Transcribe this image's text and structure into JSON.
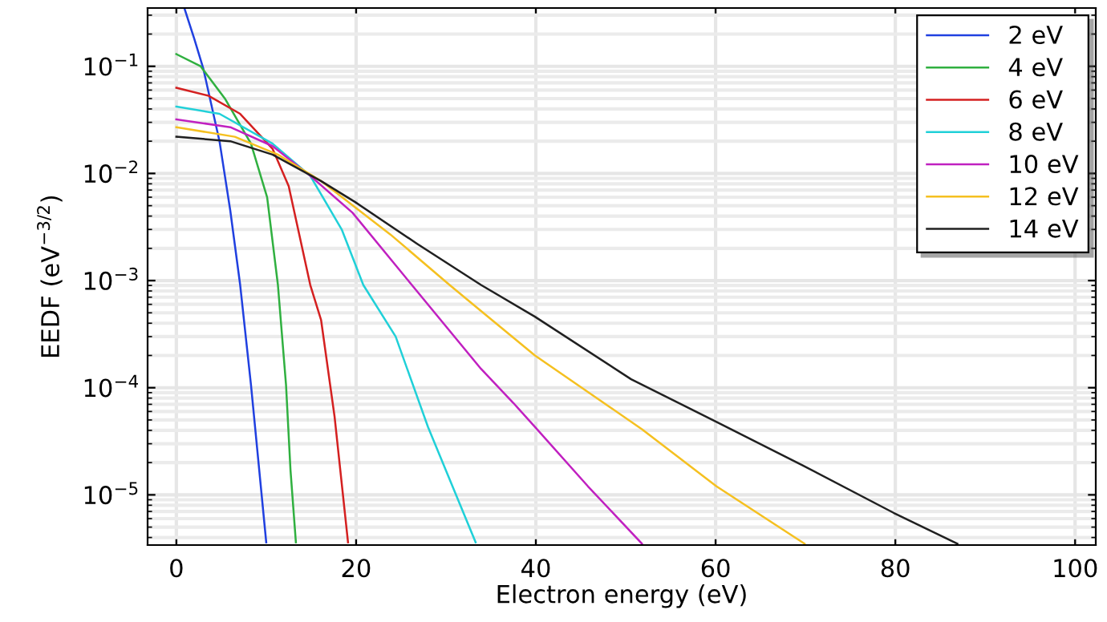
{
  "chart_data": {
    "type": "line",
    "xlabel": "Electron energy (eV)",
    "ylabel": "EEDF (eV$^{−3/2}$)",
    "log": "y",
    "grid": true,
    "legend": "top right",
    "line_style": "solid",
    "marker": "none",
    "xlim": [
      -3.2,
      102.3
    ],
    "xticks": [
      0,
      20,
      40,
      60,
      80,
      100
    ],
    "ylim": [
      3.4e-06,
      0.35
    ],
    "yticks": [
      {
        "value": 1e-05,
        "label": "10$^{−5}$"
      },
      {
        "value": 0.0001,
        "label": "10$^{−4}$"
      },
      {
        "value": 0.001,
        "label": "10$^{−3}$"
      },
      {
        "value": 0.01,
        "label": "10$^{−2}$"
      },
      {
        "value": 0.1,
        "label": "10$^{−1}$"
      }
    ],
    "series": [
      {
        "name": "2 eV",
        "color": "#2040e0",
        "x": [
          0.9,
          2,
          3,
          4.8,
          6,
          7.1,
          8.3,
          10
        ],
        "values": [
          0.347,
          0.18,
          0.095,
          0.02,
          0.0045,
          0.00091,
          0.000107,
          3.6e-06
        ]
      },
      {
        "name": "4 eV",
        "color": "#30b040",
        "x": [
          0,
          2.7,
          5.4,
          8.3,
          10.1,
          11.3,
          12.2,
          12.7,
          13.3
        ],
        "values": [
          0.13,
          0.1,
          0.05,
          0.019,
          0.006,
          0.00091,
          0.000107,
          1.7e-05,
          3.6e-06
        ]
      },
      {
        "name": "6 eV",
        "color": "#d42020",
        "x": [
          0,
          3.6,
          7.1,
          10.7,
          12.5,
          14.9,
          16.1,
          17.6,
          19.1
        ],
        "values": [
          0.063,
          0.053,
          0.036,
          0.017,
          0.0076,
          0.00091,
          0.00043,
          5.4e-05,
          3.6e-06
        ]
      },
      {
        "name": "8 eV",
        "color": "#20d0d8",
        "x": [
          0,
          4.8,
          10.7,
          14.9,
          18.4,
          20.8,
          24.4,
          28,
          33.3
        ],
        "values": [
          0.042,
          0.036,
          0.019,
          0.0095,
          0.003,
          0.00091,
          0.0003,
          4.3e-05,
          3.6e-06
        ]
      },
      {
        "name": "10 eV",
        "color": "#c020c0",
        "x": [
          0,
          6,
          10.7,
          14.9,
          19.6,
          26.2,
          33.9,
          37.5,
          39.9,
          45.8,
          51.8
        ],
        "values": [
          0.032,
          0.027,
          0.018,
          0.0095,
          0.0043,
          0.00091,
          0.00015,
          7.2e-05,
          4.3e-05,
          1.2e-05,
          3.5e-06
        ]
      },
      {
        "name": "12 eV",
        "color": "#f5c020",
        "x": [
          0,
          6.5,
          11.3,
          16.1,
          23.8,
          30.4,
          33.9,
          39.9,
          51.8,
          60.1,
          69.9
        ],
        "values": [
          0.027,
          0.022,
          0.015,
          0.0085,
          0.0027,
          0.00091,
          0.00052,
          0.0002,
          4.1e-05,
          1.2e-05,
          3.5e-06
        ]
      },
      {
        "name": "14 eV",
        "color": "#202020",
        "x": [
          0,
          6,
          10.7,
          16.1,
          19.9,
          26.8,
          33.9,
          39.9,
          50.6,
          60.1,
          69.6,
          79.8,
          86.9
        ],
        "values": [
          0.022,
          0.02,
          0.015,
          0.0085,
          0.0054,
          0.0022,
          0.00091,
          0.00046,
          0.00012,
          4.8e-05,
          1.9e-05,
          6.8e-06,
          3.5e-06
        ]
      }
    ]
  }
}
